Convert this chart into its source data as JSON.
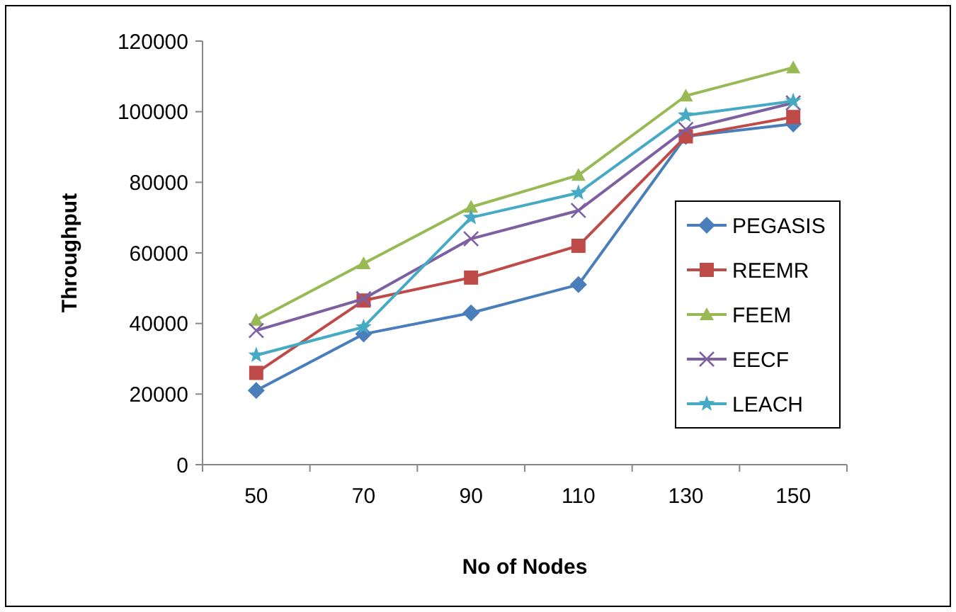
{
  "chart_data": {
    "type": "line",
    "xlabel": "No of Nodes",
    "ylabel": "Throughput",
    "categories": [
      "50",
      "70",
      "90",
      "110",
      "130",
      "150"
    ],
    "ylim": [
      0,
      120000
    ],
    "yticks": [
      0,
      20000,
      40000,
      60000,
      80000,
      100000,
      120000
    ],
    "grid": false,
    "legend": "right",
    "series": [
      {
        "name": "PEGASIS",
        "color": "#4a7ebb",
        "marker": "diamond",
        "values": [
          21000,
          37000,
          43000,
          51000,
          93000,
          96500
        ]
      },
      {
        "name": "REEMR",
        "color": "#be4b48",
        "marker": "square",
        "values": [
          26000,
          46500,
          53000,
          62000,
          93000,
          98500
        ]
      },
      {
        "name": "FEEM",
        "color": "#98b954",
        "marker": "triangle",
        "values": [
          41000,
          57000,
          73000,
          82000,
          104500,
          112500
        ]
      },
      {
        "name": "EECF",
        "color": "#7d60a0",
        "marker": "cross",
        "values": [
          38000,
          47000,
          64000,
          72000,
          95000,
          102500
        ]
      },
      {
        "name": "LEACH",
        "color": "#46aac5",
        "marker": "star",
        "values": [
          31000,
          39000,
          70000,
          77000,
          99000,
          103000
        ]
      }
    ]
  }
}
